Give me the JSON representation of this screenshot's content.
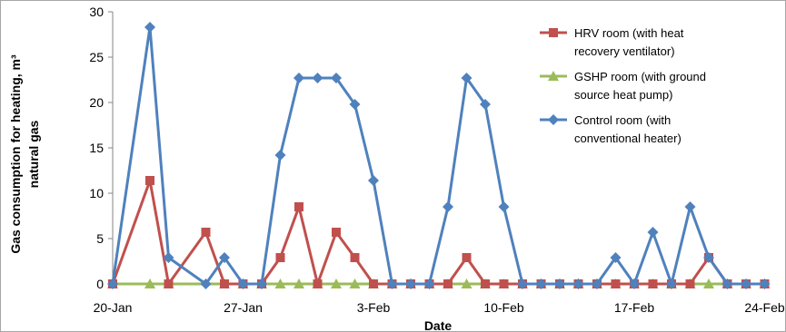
{
  "chart_data": {
    "type": "line",
    "title": "",
    "xlabel": "Date",
    "ylabel": "Gas consumption for heating, m³ natural gas",
    "ylabel_lines": [
      "Gas consumption for heating, m³",
      "natural gas"
    ],
    "x_tick_labels": [
      "20-Jan",
      "27-Jan",
      "3-Feb",
      "10-Feb",
      "17-Feb",
      "24-Feb"
    ],
    "x_start": "20-Jan",
    "x_step_days": 1,
    "ylim": [
      0,
      30
    ],
    "yticks": [
      0,
      5,
      10,
      15,
      20,
      25,
      30
    ],
    "grid": false,
    "legend_position": "top-right",
    "series": [
      {
        "name": "HRV room (with heat recovery ventilator)",
        "legend_lines": [
          "HRV room (with heat",
          "recovery ventilator)"
        ],
        "color": "#c0504d",
        "marker": "square",
        "x": [
          "20-Jan",
          "22-Jan",
          "23-Jan",
          "25-Jan",
          "26-Jan",
          "27-Jan",
          "28-Jan",
          "29-Jan",
          "30-Jan",
          "31-Jan",
          "1-Feb",
          "2-Feb",
          "3-Feb",
          "4-Feb",
          "5-Feb",
          "6-Feb",
          "7-Feb",
          "8-Feb",
          "9-Feb",
          "10-Feb",
          "11-Feb",
          "12-Feb",
          "13-Feb",
          "14-Feb",
          "15-Feb",
          "16-Feb",
          "17-Feb",
          "18-Feb",
          "19-Feb",
          "20-Feb",
          "21-Feb",
          "22-Feb",
          "23-Feb",
          "24-Feb"
        ],
        "values": [
          0,
          11.4,
          0,
          5.7,
          0,
          0,
          0,
          2.9,
          8.5,
          0,
          5.7,
          2.9,
          0,
          0,
          0,
          0,
          0,
          2.9,
          0,
          0,
          0,
          0,
          0,
          0,
          0,
          0,
          0,
          0,
          0,
          0,
          2.9,
          0,
          0,
          0
        ]
      },
      {
        "name": "GSHP room (with ground source heat pump)",
        "legend_lines": [
          "GSHP room (with ground",
          "source heat pump)"
        ],
        "color": "#9bbb59",
        "marker": "triangle",
        "x": [
          "20-Jan",
          "22-Jan",
          "23-Jan",
          "26-Jan",
          "27-Jan",
          "28-Jan",
          "29-Jan",
          "30-Jan",
          "31-Jan",
          "1-Feb",
          "2-Feb",
          "3-Feb",
          "4-Feb",
          "5-Feb",
          "6-Feb",
          "7-Feb",
          "8-Feb",
          "9-Feb",
          "10-Feb",
          "11-Feb",
          "12-Feb",
          "13-Feb",
          "14-Feb",
          "15-Feb",
          "16-Feb",
          "17-Feb",
          "18-Feb",
          "19-Feb",
          "20-Feb",
          "21-Feb",
          "22-Feb",
          "23-Feb",
          "24-Feb"
        ],
        "values": [
          0,
          0,
          0,
          0,
          0,
          0,
          0,
          0,
          0,
          0,
          0,
          0,
          0,
          0,
          0,
          0,
          0,
          0,
          0,
          0,
          0,
          0,
          0,
          0,
          0,
          0,
          0,
          0,
          0,
          0,
          0,
          0,
          0
        ]
      },
      {
        "name": "Control room (with conventional heater)",
        "legend_lines": [
          "Control room (with",
          "conventional heater)"
        ],
        "color": "#4f81bd",
        "marker": "diamond",
        "x": [
          "20-Jan",
          "22-Jan",
          "23-Jan",
          "25-Jan",
          "26-Jan",
          "27-Jan",
          "28-Jan",
          "29-Jan",
          "30-Jan",
          "31-Jan",
          "1-Feb",
          "2-Feb",
          "3-Feb",
          "4-Feb",
          "5-Feb",
          "6-Feb",
          "7-Feb",
          "8-Feb",
          "9-Feb",
          "10-Feb",
          "11-Feb",
          "12-Feb",
          "13-Feb",
          "14-Feb",
          "15-Feb",
          "16-Feb",
          "17-Feb",
          "18-Feb",
          "19-Feb",
          "20-Feb",
          "21-Feb",
          "22-Feb",
          "23-Feb",
          "24-Feb"
        ],
        "values": [
          0,
          28.3,
          2.9,
          0,
          2.9,
          0,
          0,
          14.2,
          22.7,
          22.7,
          22.7,
          19.8,
          11.4,
          0,
          0,
          0,
          8.5,
          22.7,
          19.8,
          8.5,
          0,
          0,
          0,
          0,
          0,
          2.9,
          0,
          5.7,
          0,
          8.5,
          2.9,
          0,
          0,
          0
        ]
      }
    ]
  }
}
